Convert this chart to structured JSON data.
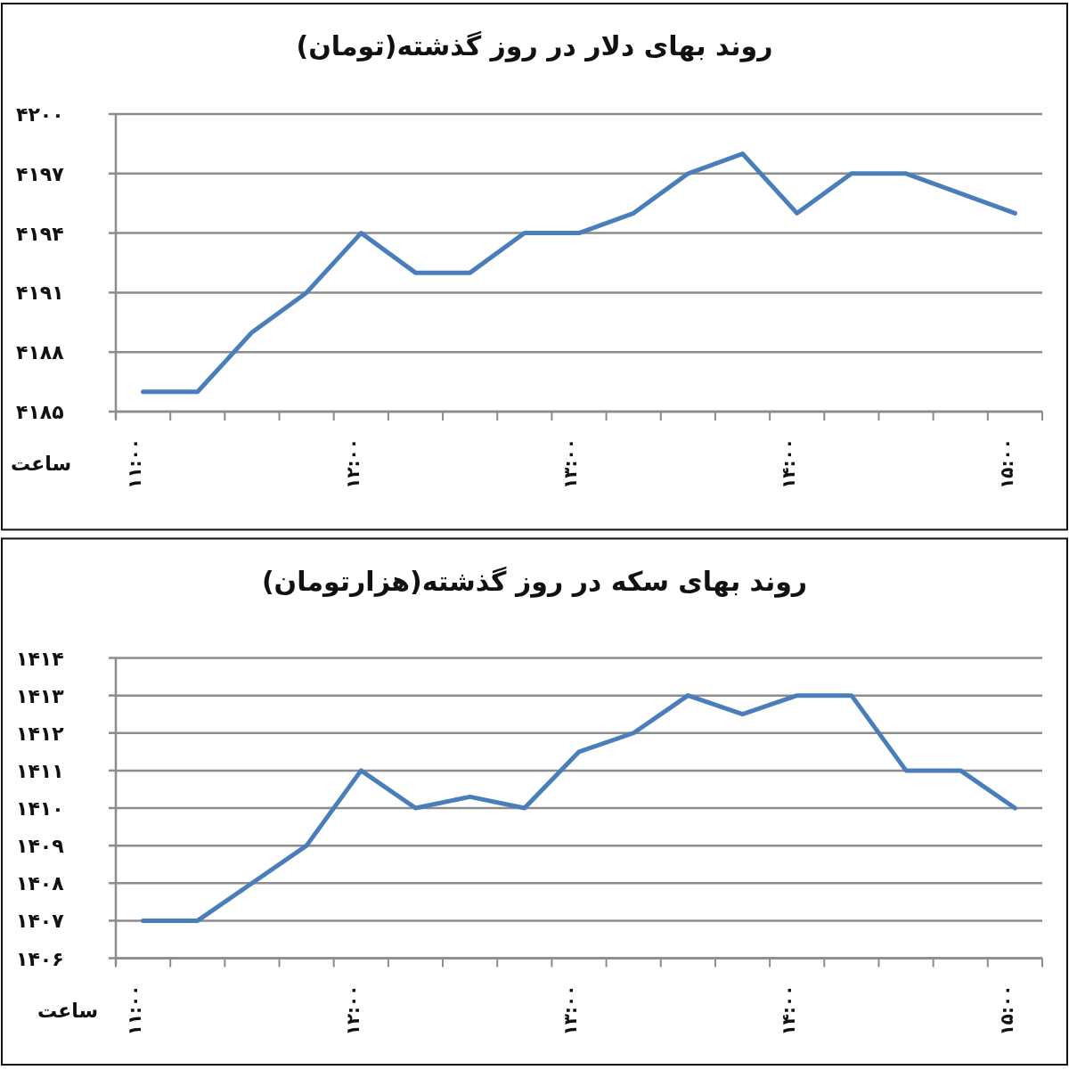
{
  "chart_data": [
    {
      "type": "line",
      "title": "روند بهای دلار در روز گذشته(تومان)",
      "xlabel": "ساعت",
      "categories": [
        "۱۱:۰۰",
        null,
        null,
        null,
        "۱۲:۰۰",
        null,
        null,
        null,
        "۱۳:۰۰",
        null,
        null,
        null,
        "۱۴:۰۰",
        null,
        null,
        null,
        "۱۵:۰۰"
      ],
      "series": [
        {
          "color": "#4a7ebb",
          "values": [
            4186,
            4186,
            4189,
            4191,
            4194,
            4192,
            4192,
            4194,
            4194,
            4195,
            4197,
            4198,
            4195,
            4197,
            4197,
            4196,
            4195
          ]
        }
      ],
      "ylim": [
        4185,
        4200
      ],
      "yticks": [
        {
          "value": 4185,
          "label": "۴۱۸۵"
        },
        {
          "value": 4188,
          "label": "۴۱۸۸"
        },
        {
          "value": 4191,
          "label": "۴۱۹۱"
        },
        {
          "value": 4194,
          "label": "۴۱۹۴"
        },
        {
          "value": 4197,
          "label": "۴۱۹۷"
        },
        {
          "value": 4200,
          "label": "۴۲۰۰"
        }
      ],
      "grid": "y"
    },
    {
      "type": "line",
      "title": "روند بهای سکه در روز گذشته(هزارتومان)",
      "xlabel": "ساعت",
      "categories": [
        "۱۱:۰۰",
        null,
        null,
        null,
        "۱۲:۰۰",
        null,
        null,
        null,
        "۱۳:۰۰",
        null,
        null,
        null,
        "۱۴:۰۰",
        null,
        null,
        null,
        "۱۵:۰۰"
      ],
      "series": [
        {
          "color": "#4a7ebb",
          "values": [
            1407,
            1407,
            1408,
            1409,
            1411,
            1410,
            1410.3,
            1410,
            1411.5,
            1412,
            1413,
            1412.5,
            1413,
            1413,
            1411,
            1411,
            1410
          ]
        }
      ],
      "ylim": [
        1406,
        1414
      ],
      "yticks": [
        {
          "value": 1406,
          "label": "۱۴۰۶"
        },
        {
          "value": 1407,
          "label": "۱۴۰۷"
        },
        {
          "value": 1408,
          "label": "۱۴۰۸"
        },
        {
          "value": 1409,
          "label": "۱۴۰۹"
        },
        {
          "value": 1410,
          "label": "۱۴۱۰"
        },
        {
          "value": 1411,
          "label": "۱۴۱۱"
        },
        {
          "value": 1412,
          "label": "۱۴۱۲"
        },
        {
          "value": 1413,
          "label": "۱۴۱۳"
        },
        {
          "value": 1414,
          "label": "۱۴۱۴"
        }
      ],
      "grid": "y"
    }
  ]
}
